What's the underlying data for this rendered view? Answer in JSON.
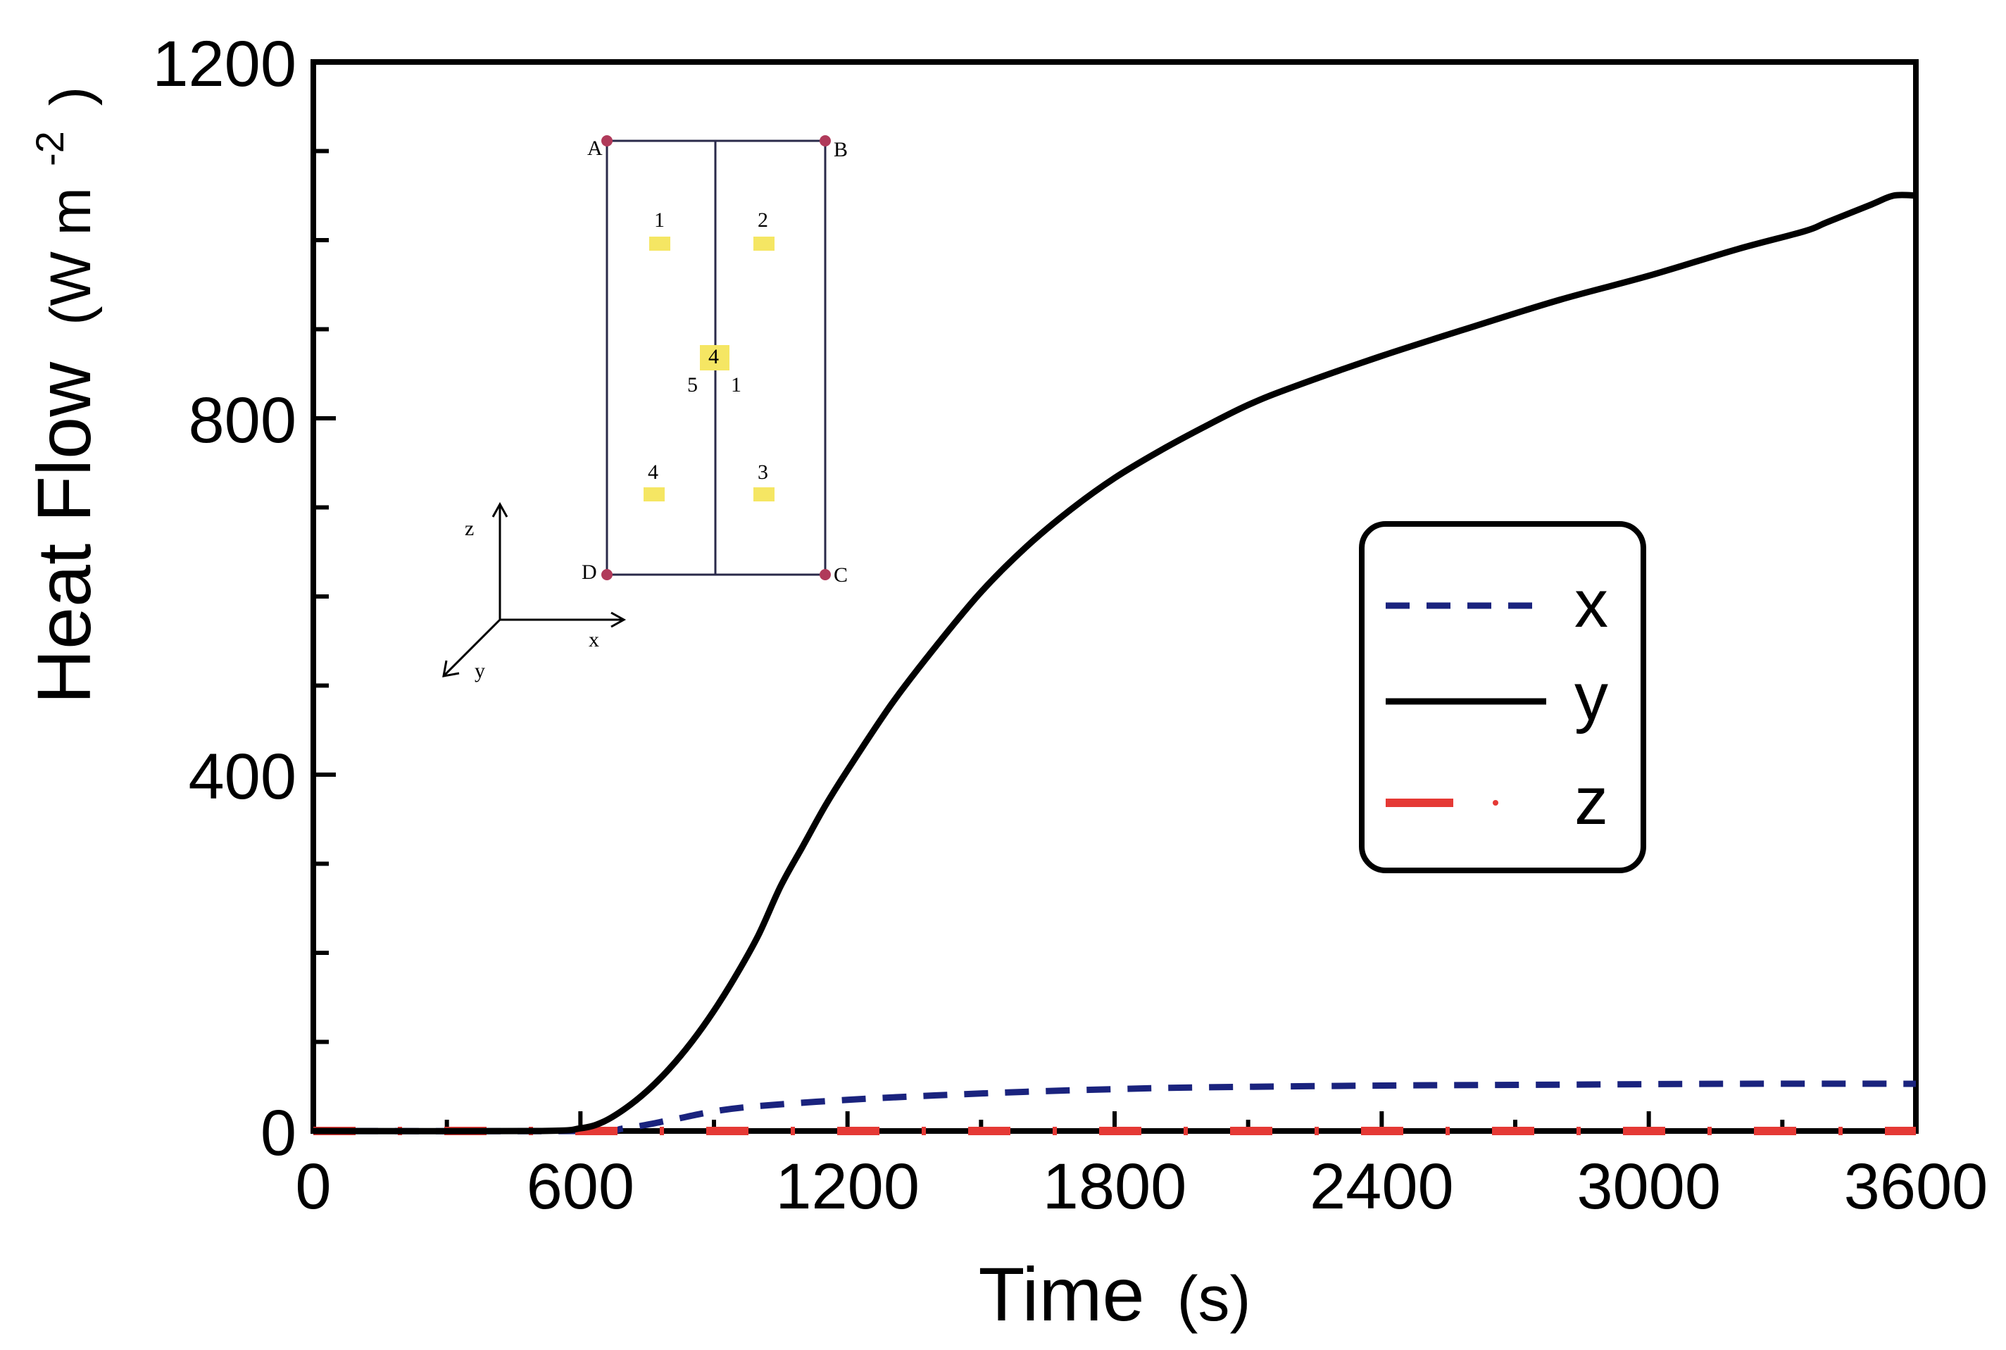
{
  "chart_data": {
    "type": "line",
    "title": "",
    "xlabel": "Time (s)",
    "ylabel": "Heat Flow (W m-2)",
    "xlabel_parts": {
      "main": "Time",
      "unit": "(s)"
    },
    "ylabel_parts": {
      "main": "Heat Flow",
      "unit": "(W m",
      "sup": "-2",
      "close": ")"
    },
    "xlim": [
      0,
      3600
    ],
    "ylim": [
      0,
      1200
    ],
    "x_ticks": [
      "0",
      "600",
      "1200",
      "1800",
      "2400",
      "3000",
      "3600"
    ],
    "y_ticks": [
      "0",
      "400",
      "800",
      "1200"
    ],
    "grid": false,
    "legend_position": "right-center",
    "series": [
      {
        "name": "x",
        "style": "dashed",
        "color": "#1a237e",
        "points": [
          [
            0,
            0
          ],
          [
            600,
            0
          ],
          [
            700,
            3
          ],
          [
            800,
            12
          ],
          [
            900,
            22
          ],
          [
            1000,
            28
          ],
          [
            1200,
            35
          ],
          [
            1400,
            40
          ],
          [
            1600,
            44
          ],
          [
            1800,
            47
          ],
          [
            2000,
            49
          ],
          [
            2400,
            51
          ],
          [
            2800,
            52
          ],
          [
            3200,
            53
          ],
          [
            3600,
            53
          ]
        ]
      },
      {
        "name": "y",
        "style": "solid",
        "color": "#000000",
        "points": [
          [
            0,
            0
          ],
          [
            500,
            0
          ],
          [
            600,
            3
          ],
          [
            650,
            10
          ],
          [
            700,
            25
          ],
          [
            750,
            45
          ],
          [
            800,
            70
          ],
          [
            850,
            100
          ],
          [
            900,
            135
          ],
          [
            950,
            175
          ],
          [
            1000,
            220
          ],
          [
            1050,
            275
          ],
          [
            1100,
            320
          ],
          [
            1150,
            365
          ],
          [
            1200,
            405
          ],
          [
            1300,
            480
          ],
          [
            1400,
            545
          ],
          [
            1500,
            605
          ],
          [
            1600,
            655
          ],
          [
            1700,
            697
          ],
          [
            1800,
            733
          ],
          [
            1900,
            763
          ],
          [
            2000,
            790
          ],
          [
            2100,
            815
          ],
          [
            2200,
            835
          ],
          [
            2400,
            870
          ],
          [
            2600,
            902
          ],
          [
            2800,
            933
          ],
          [
            3000,
            960
          ],
          [
            3200,
            990
          ],
          [
            3350,
            1010
          ],
          [
            3400,
            1020
          ],
          [
            3500,
            1040
          ],
          [
            3550,
            1050
          ],
          [
            3600,
            1050
          ]
        ]
      },
      {
        "name": "z",
        "style": "dash-dot",
        "color": "#e53935",
        "points": [
          [
            0,
            0
          ],
          [
            3600,
            0
          ]
        ]
      }
    ],
    "inset": {
      "corner_labels": [
        "A",
        "B",
        "C",
        "D"
      ],
      "point_labels": [
        "1",
        "2",
        "3",
        "4"
      ],
      "center_label": "4",
      "center_side_labels": [
        "5",
        "1"
      ],
      "axis_labels": [
        "z",
        "x",
        "y"
      ]
    }
  },
  "colors": {
    "axis": "#000000",
    "inset_frame": "#2a2a4a",
    "inset_corner": "#b03a5a",
    "inset_sensor": "#f5e663"
  }
}
